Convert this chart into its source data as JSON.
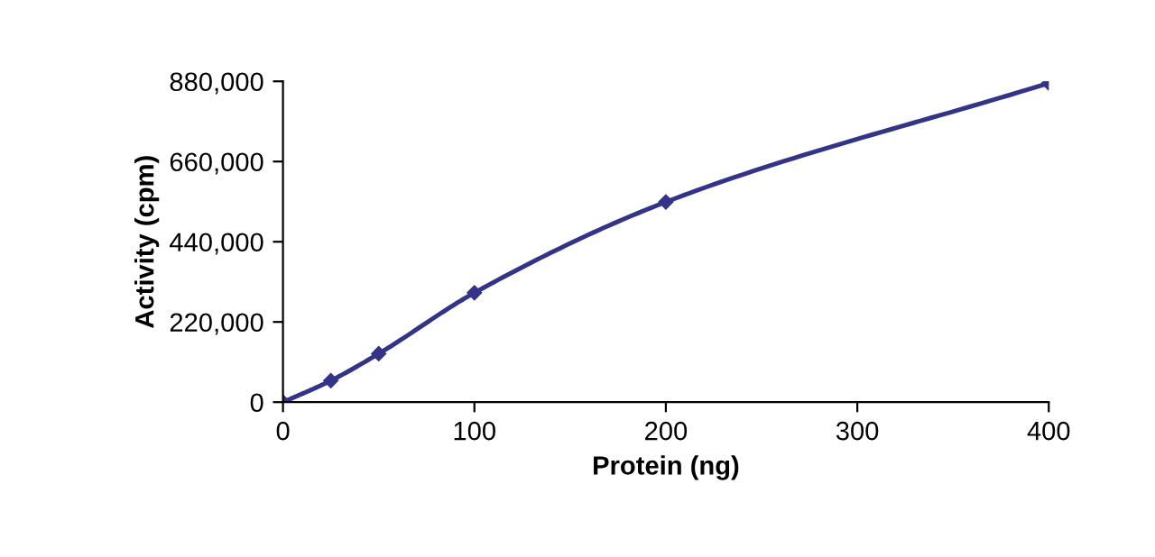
{
  "chart_data": {
    "type": "line",
    "xlabel": "Protein (ng)",
    "ylabel": "Activity (cpm)",
    "x": [
      0,
      25,
      50,
      100,
      200,
      400
    ],
    "series": [
      {
        "color": "#333388",
        "values": [
          0,
          59000,
          133000,
          300000,
          549000,
          875000
        ]
      }
    ],
    "xlim": [
      0,
      400
    ],
    "xticks": [
      0,
      100,
      200,
      300,
      400
    ],
    "ylim": [
      0,
      880000
    ],
    "yticks": [
      0,
      {
        "value": 220000,
        "label": "220,000"
      },
      {
        "value": 440000,
        "label": "440,000"
      },
      {
        "value": 660000,
        "label": "660,000"
      },
      {
        "value": 880000,
        "label": "880,000"
      }
    ],
    "marker": "diamond",
    "line_style": "solid",
    "grid": false,
    "legend": false
  }
}
